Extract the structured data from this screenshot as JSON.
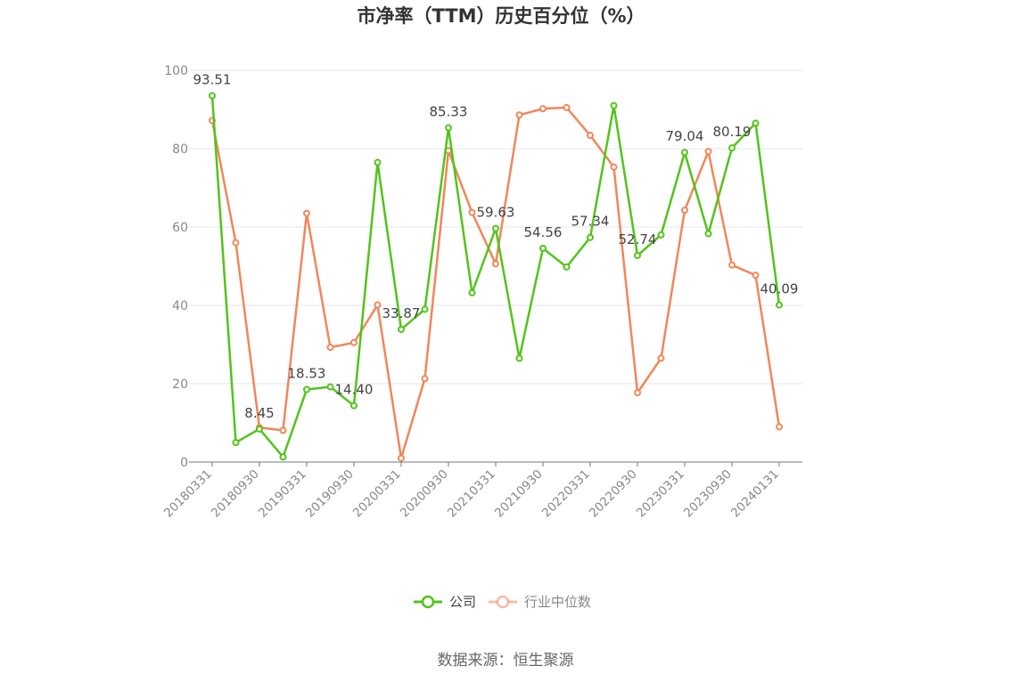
{
  "chart_data": {
    "type": "line",
    "title": "市净率（TTM）历史百分位（%）",
    "source": "数据来源：恒生聚源",
    "ylim": [
      0,
      100
    ],
    "yticks": [
      "0",
      "20",
      "40",
      "60",
      "80",
      "100"
    ],
    "grid": true,
    "legend_position": "bottom-center",
    "x": [
      "20180331",
      "20180630",
      "20180930",
      "20181231",
      "20190331",
      "20190630",
      "20190930",
      "20191231",
      "20200331",
      "20200630",
      "20200930",
      "20201231",
      "20210331",
      "20210630",
      "20210930",
      "20211231",
      "20220331",
      "20220630",
      "20220930",
      "20221231",
      "20230331",
      "20230630",
      "20230930",
      "20231231",
      "20240131"
    ],
    "xtick_labels": [
      "20180331",
      "20180930",
      "20190331",
      "20190930",
      "20200331",
      "20200930",
      "20210331",
      "20210930",
      "20220331",
      "20220930",
      "20230331",
      "20230930",
      "20240131"
    ],
    "series": [
      {
        "name": "公司",
        "color": "#52c41a",
        "values": [
          93.51,
          5.0,
          8.45,
          1.3,
          18.53,
          19.2,
          14.4,
          76.5,
          33.87,
          39.0,
          85.33,
          43.2,
          59.63,
          26.5,
          54.56,
          49.8,
          57.34,
          91.0,
          52.74,
          58.0,
          79.04,
          58.3,
          80.19,
          86.5,
          40.09
        ],
        "data_labels": {
          "0": "93.51",
          "2": "8.45",
          "4": "18.53",
          "6": "14.40",
          "8": "33.87",
          "10": "85.33",
          "12": "59.63",
          "14": "54.56",
          "16": "57.34",
          "18": "52.74",
          "20": "79.04",
          "22": "80.19",
          "24": "40.09"
        }
      },
      {
        "name": "行业中位数",
        "color": "#f0875a",
        "values": [
          87.2,
          56.0,
          8.8,
          8.1,
          63.5,
          29.3,
          30.5,
          40.1,
          1.0,
          21.3,
          79.5,
          63.7,
          50.6,
          88.6,
          90.2,
          90.5,
          83.4,
          75.3,
          17.7,
          26.5,
          64.3,
          79.3,
          50.3,
          47.7,
          9.0
        ]
      }
    ]
  }
}
